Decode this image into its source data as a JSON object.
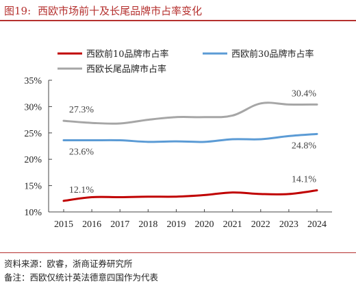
{
  "figure": {
    "number": "图19:",
    "title": "西欧市场前十及长尾品牌市占率变化"
  },
  "footer": {
    "source": "资料来源：欧睿，浙商证券研究所",
    "note": "备注：西欧仅统计英法德意四国作为代表"
  },
  "chart_data": {
    "type": "line",
    "x": [
      2015,
      2016,
      2017,
      2018,
      2019,
      2020,
      2021,
      2022,
      2023,
      2024
    ],
    "xticks": [
      "2015",
      "2016",
      "2017",
      "2018",
      "2019",
      "2020",
      "2021",
      "2022",
      "2023",
      "2024"
    ],
    "yticks": [
      "10%",
      "15%",
      "20%",
      "25%",
      "30%",
      "35%"
    ],
    "ylim": [
      10,
      35
    ],
    "grid": false,
    "legend_position": "top",
    "series": [
      {
        "name": "西欧前10品牌市占率",
        "color": "#c00000",
        "values": [
          12.1,
          12.8,
          12.8,
          12.9,
          12.9,
          13.2,
          13.7,
          13.4,
          13.4,
          14.1
        ]
      },
      {
        "name": "西欧前30品牌市占率",
        "color": "#5b9bd5",
        "values": [
          23.6,
          23.6,
          23.6,
          23.3,
          23.4,
          23.3,
          23.8,
          23.8,
          24.4,
          24.8
        ]
      },
      {
        "name": "西欧长尾品牌市占率",
        "color": "#a6a6a6",
        "values": [
          27.3,
          26.9,
          26.8,
          27.5,
          28.0,
          28.0,
          28.3,
          30.6,
          30.4,
          30.4
        ]
      }
    ],
    "annotations": [
      {
        "series": 0,
        "index": 0,
        "text": "12.1%"
      },
      {
        "series": 0,
        "index": 9,
        "text": "14.1%"
      },
      {
        "series": 1,
        "index": 0,
        "text": "23.6%"
      },
      {
        "series": 1,
        "index": 9,
        "text": "24.8%"
      },
      {
        "series": 2,
        "index": 0,
        "text": "27.3%"
      },
      {
        "series": 2,
        "index": 9,
        "text": "30.4%"
      }
    ]
  }
}
